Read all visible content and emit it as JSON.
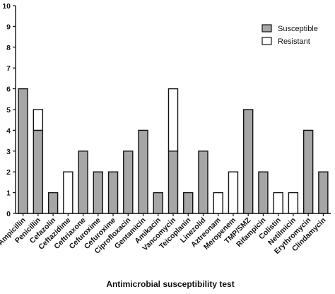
{
  "chart_data": {
    "type": "bar",
    "stacked": true,
    "title": "",
    "xlabel": "Antimicrobial susceptibility test",
    "ylabel": "",
    "ylim": [
      0,
      10
    ],
    "yticks": [
      0,
      1,
      2,
      3,
      4,
      5,
      6,
      7,
      8,
      9,
      10
    ],
    "grid": false,
    "legend_position": "top-right",
    "categories": [
      "Ampicillin",
      "Penicillin",
      "Cefazolin",
      "Ceftazidime",
      "Ceftriaxone",
      "Cefuroxime",
      "Cefuroxime",
      "Ciprofloxacin",
      "Gentamicin",
      "Amikacin",
      "Vancomycin",
      "Teicoplanin",
      "Linezolid",
      "Aztreonam",
      "Meropenem",
      "TMP/SMZ",
      "Rifampicin",
      "Colistin",
      "Netilmicin",
      "Erythromycin",
      "Clindamycin"
    ],
    "series": [
      {
        "name": "Susceptible",
        "color": "#a6a6a6",
        "values": [
          6,
          4,
          1,
          0,
          3,
          2,
          2,
          3,
          4,
          1,
          3,
          1,
          3,
          0,
          0,
          5,
          2,
          0,
          0,
          4,
          2
        ]
      },
      {
        "name": "Resistant",
        "color": "#ffffff",
        "values": [
          0,
          1,
          0,
          2,
          0,
          0,
          0,
          0,
          0,
          0,
          3,
          0,
          0,
          1,
          2,
          0,
          0,
          1,
          1,
          0,
          0
        ]
      }
    ]
  }
}
